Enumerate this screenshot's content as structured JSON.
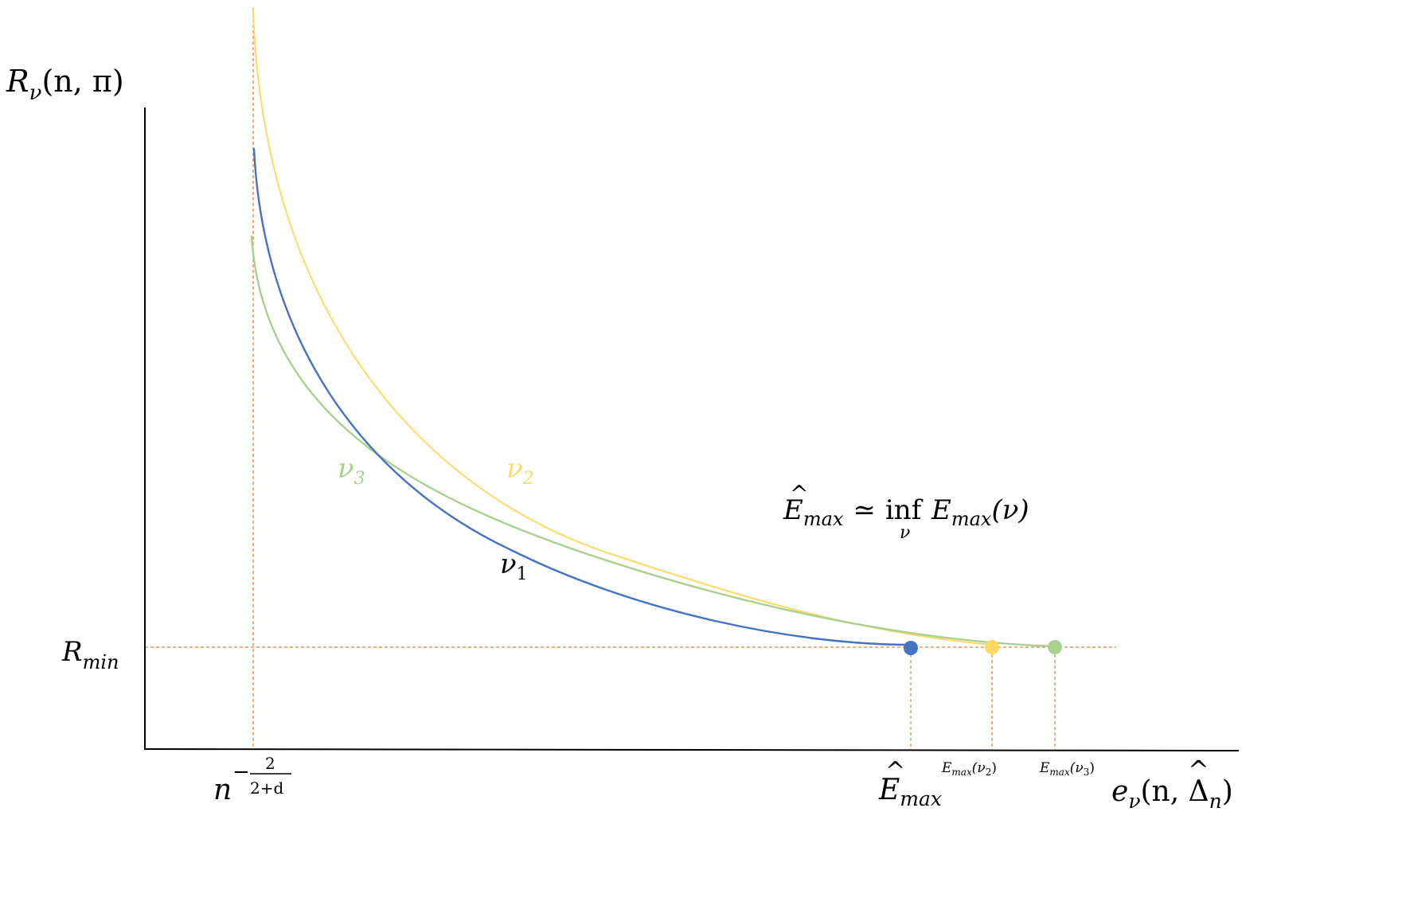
{
  "colors": {
    "nu1": "#4472C4",
    "nu2": "#FFD966",
    "nu3": "#A9D18E",
    "guide": "#ED7D31",
    "axis": "#000000"
  },
  "axes": {
    "y_label_main": "R",
    "y_label_sub": "ν",
    "y_label_args": "(n, π)",
    "x_label_main": "e",
    "x_label_sub": "ν",
    "x_label_args_open": "(n, ",
    "x_label_delta": "Δ",
    "x_label_delta_hat": "^",
    "x_label_delta_sub": "n",
    "x_label_args_close": ")"
  },
  "ticks": {
    "rmin_main": "R",
    "rmin_sub": "min",
    "n_base": "n",
    "n_exp_sign": "−",
    "n_exp_num": "2",
    "n_exp_den": "2+d",
    "emax_hat_main": "E",
    "emax_hat_caret": "^",
    "emax_hat_sub": "max",
    "emax_nu2_main": "E",
    "emax_nu2_sub": "max",
    "emax_nu2_arg": "(ν",
    "emax_nu2_arg_sub": "2",
    "emax_nu2_close": ")",
    "emax_nu3_main": "E",
    "emax_nu3_sub": "max",
    "emax_nu3_arg": "(ν",
    "emax_nu3_arg_sub": "3",
    "emax_nu3_close": ")"
  },
  "curves": [
    {
      "id": "nu1",
      "name_main": "ν",
      "name_sub": "1",
      "color": "#4472C4"
    },
    {
      "id": "nu2",
      "name_main": "ν",
      "name_sub": "2",
      "color": "#FFD966"
    },
    {
      "id": "nu3",
      "name_main": "ν",
      "name_sub": "3",
      "color": "#A9D18E"
    }
  ],
  "equation": {
    "lhs_main": "E",
    "lhs_caret": "^",
    "lhs_sub": "max",
    "relation": "≃",
    "op": "inf",
    "op_sub": "ν",
    "rhs_main": "E",
    "rhs_sub": "max",
    "rhs_arg": "(ν)"
  }
}
